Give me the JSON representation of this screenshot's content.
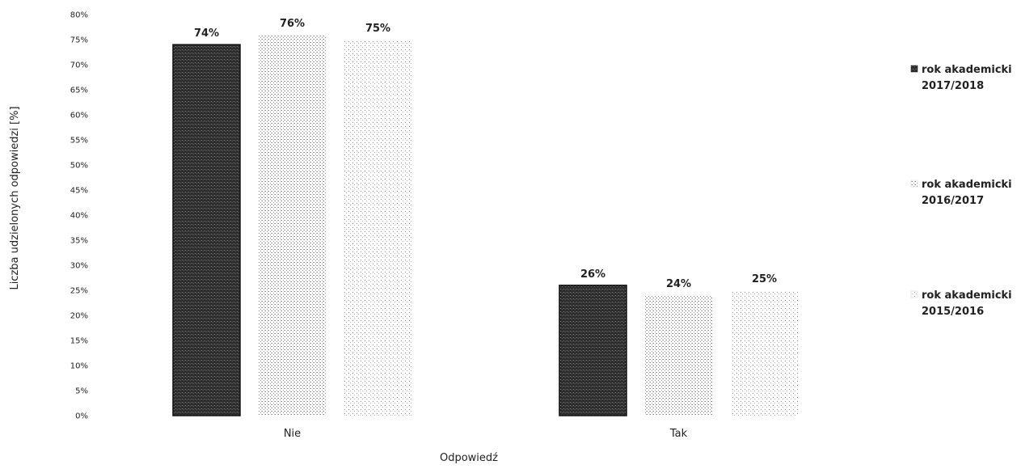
{
  "chart_data": {
    "type": "bar",
    "categories": [
      "Nie",
      "Tak"
    ],
    "series": [
      {
        "name": "rok akademicki 2017/2018",
        "values": [
          74,
          26
        ],
        "labels": [
          "74%",
          "26%"
        ],
        "color": "#3a3a3a"
      },
      {
        "name": "rok akademicki 2016/2017",
        "values": [
          76,
          24
        ],
        "labels": [
          "76%",
          "24%"
        ],
        "color": "#9a9a9a"
      },
      {
        "name": "rok akademicki 2015/2016",
        "values": [
          75,
          25
        ],
        "labels": [
          "75%",
          "25%"
        ],
        "color": "#b5b5b5"
      }
    ],
    "xlabel": "Odpowiedź",
    "ylabel": "Liczba udzielonych odpowiedzi [%]",
    "ylim": [
      0,
      80
    ],
    "yticks": [
      "0%",
      "5%",
      "10%",
      "15%",
      "20%",
      "25%",
      "30%",
      "35%",
      "40%",
      "45%",
      "50%",
      "55%",
      "60%",
      "65%",
      "70%",
      "75%",
      "80%"
    ],
    "grid": false,
    "legend_position": "right",
    "legend_lines": [
      [
        "rok akademicki",
        "2017/2018"
      ],
      [
        "rok akademicki",
        "2016/2017"
      ],
      [
        "rok akademicki",
        "2015/2016"
      ]
    ]
  }
}
